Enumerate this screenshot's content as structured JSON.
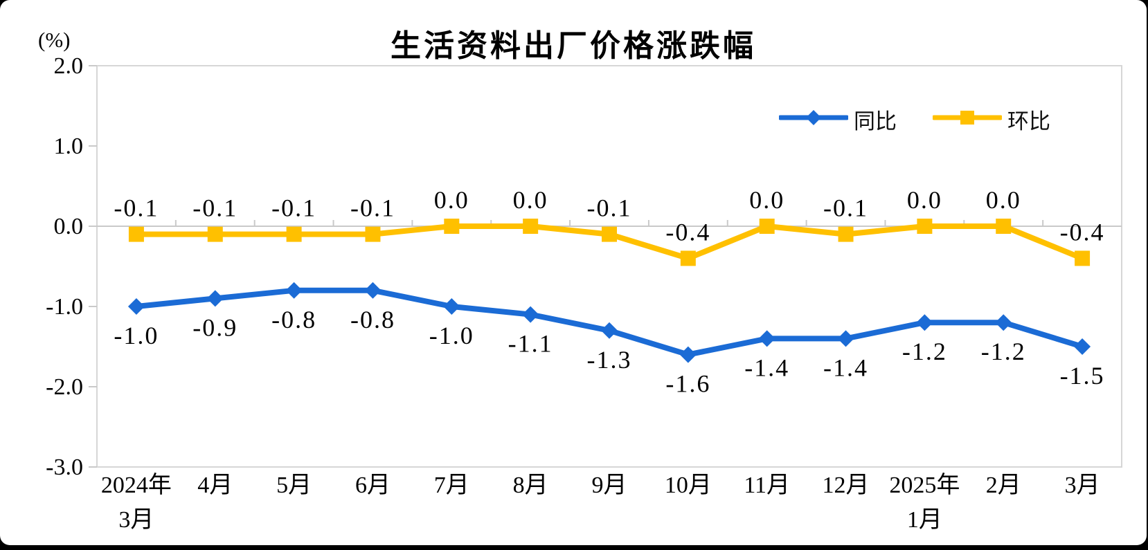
{
  "chart_data": {
    "type": "line",
    "title": "生活资料出厂价格涨跌幅",
    "unit_label": "(%)",
    "grid": "zero-line-only",
    "grid_color": "#c9c9c9",
    "border_color": "#d6d6d6",
    "legend_position": "top-right-inside",
    "categories": [
      {
        "line1": "2024年",
        "line2": "3月"
      },
      {
        "line1": "4月"
      },
      {
        "line1": "5月"
      },
      {
        "line1": "6月"
      },
      {
        "line1": "7月"
      },
      {
        "line1": "8月"
      },
      {
        "line1": "9月"
      },
      {
        "line1": "10月"
      },
      {
        "line1": "11月"
      },
      {
        "line1": "12月"
      },
      {
        "line1": "2025年",
        "line2": "1月"
      },
      {
        "line1": "2月"
      },
      {
        "line1": "3月"
      }
    ],
    "series": [
      {
        "name": "同比",
        "color": "#1b6bd5",
        "marker": "diamond",
        "label_position": "below",
        "values": [
          -1.0,
          -0.9,
          -0.8,
          -0.8,
          -1.0,
          -1.1,
          -1.3,
          -1.6,
          -1.4,
          -1.4,
          -1.2,
          -1.2,
          -1.5
        ]
      },
      {
        "name": "环比",
        "color": "#ffc000",
        "marker": "square",
        "label_position": "above",
        "values": [
          -0.1,
          -0.1,
          -0.1,
          -0.1,
          0.0,
          0.0,
          -0.1,
          -0.4,
          0.0,
          -0.1,
          0.0,
          0.0,
          -0.4
        ]
      }
    ],
    "y_axis": {
      "min": -3.0,
      "max": 2.0,
      "tick_labels": [
        "2.0",
        "1.0",
        "0.0",
        "-1.0",
        "-2.0",
        "-3.0"
      ],
      "tick_values": [
        2.0,
        1.0,
        0.0,
        -1.0,
        -2.0,
        -3.0
      ]
    }
  }
}
